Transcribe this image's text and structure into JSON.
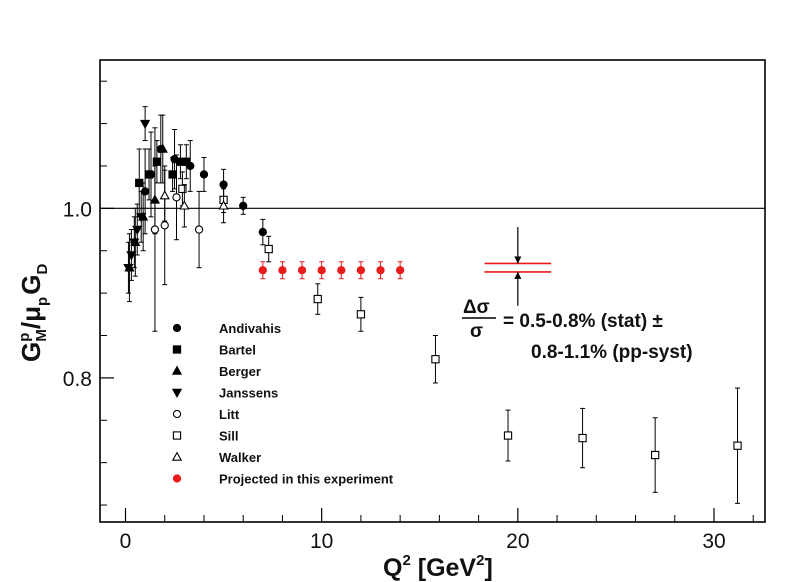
{
  "chart_data": {
    "type": "scatter",
    "xlabel": {
      "base": "Q",
      "sup": "2",
      "units_open": " [GeV",
      "units_sup": "2",
      "units_close": "]"
    },
    "ylabel": {
      "g": "G",
      "g_sup": "p",
      "g_sub": "M",
      "slash_mu": "/μ",
      "mu_sub": "p",
      "gd": "G",
      "gd_sub": "D"
    },
    "xlim": [
      -1.3,
      32.6
    ],
    "ylim": [
      0.63,
      1.175
    ],
    "xticks": [
      0,
      10,
      20,
      30
    ],
    "yticks": [
      0.8,
      1.0
    ],
    "ytick_labels": [
      "0.8",
      "1.0"
    ],
    "reference_line": 1.0,
    "series": [
      {
        "name": "Andivahis",
        "marker": "filled-circle",
        "color": "#000000",
        "points": [
          {
            "x": 1.0,
            "y": 1.02,
            "err": 0.05
          },
          {
            "x": 1.3,
            "y": 1.04,
            "err": 0.05
          },
          {
            "x": 1.8,
            "y": 1.07,
            "err": 0.04
          },
          {
            "x": 2.5,
            "y": 1.058,
            "err": 0.035
          },
          {
            "x": 3.3,
            "y": 1.05,
            "err": 0.03
          },
          {
            "x": 4.0,
            "y": 1.04,
            "err": 0.02
          },
          {
            "x": 5.0,
            "y": 1.028,
            "err": 0.018
          },
          {
            "x": 6.0,
            "y": 1.003,
            "err": 0.01
          },
          {
            "x": 7.0,
            "y": 0.972,
            "err": 0.015
          }
        ]
      },
      {
        "name": "Bartel",
        "marker": "filled-square",
        "color": "#000000",
        "points": [
          {
            "x": 0.7,
            "y": 1.03,
            "err": 0.04
          },
          {
            "x": 1.2,
            "y": 1.04,
            "err": 0.03
          },
          {
            "x": 1.6,
            "y": 1.055,
            "err": 0.025
          },
          {
            "x": 2.4,
            "y": 1.04,
            "err": 0.02
          },
          {
            "x": 2.8,
            "y": 1.055,
            "err": 0.02
          },
          {
            "x": 3.1,
            "y": 1.055,
            "err": 0.02
          }
        ]
      },
      {
        "name": "Berger",
        "marker": "filled-triangle-up",
        "color": "#000000",
        "points": [
          {
            "x": 0.2,
            "y": 0.93,
            "err": 0.04
          },
          {
            "x": 0.5,
            "y": 0.96,
            "err": 0.04
          },
          {
            "x": 0.9,
            "y": 0.99,
            "err": 0.04
          },
          {
            "x": 1.5,
            "y": 1.01,
            "err": 0.04
          },
          {
            "x": 1.9,
            "y": 1.07,
            "err": 0.04
          }
        ]
      },
      {
        "name": "Janssens",
        "marker": "filled-triangle-down",
        "color": "#000000",
        "points": [
          {
            "x": 0.15,
            "y": 0.93,
            "err": 0.03
          },
          {
            "x": 0.3,
            "y": 0.945,
            "err": 0.03
          },
          {
            "x": 0.45,
            "y": 0.96,
            "err": 0.03
          },
          {
            "x": 0.6,
            "y": 0.975,
            "err": 0.03
          },
          {
            "x": 0.8,
            "y": 0.99,
            "err": 0.03
          },
          {
            "x": 1.0,
            "y": 1.1,
            "err": 0.02
          }
        ]
      },
      {
        "name": "Litt",
        "marker": "open-circle",
        "color": "#000000",
        "points": [
          {
            "x": 1.5,
            "y": 0.975,
            "err": 0.12
          },
          {
            "x": 2.0,
            "y": 0.98,
            "err": 0.07
          },
          {
            "x": 2.6,
            "y": 1.013,
            "err": 0.05
          },
          {
            "x": 3.75,
            "y": 0.975,
            "err": 0.045
          }
        ]
      },
      {
        "name": "Sill",
        "marker": "open-square",
        "color": "#000000",
        "points": [
          {
            "x": 2.9,
            "y": 1.023,
            "err": 0.02
          },
          {
            "x": 5.0,
            "y": 1.01,
            "err": 0.015
          },
          {
            "x": 7.3,
            "y": 0.952,
            "err": 0.015
          },
          {
            "x": 9.8,
            "y": 0.893,
            "err": 0.018
          },
          {
            "x": 12.0,
            "y": 0.875,
            "err": 0.02
          },
          {
            "x": 15.8,
            "y": 0.822,
            "err": 0.028
          },
          {
            "x": 19.5,
            "y": 0.732,
            "err": 0.03
          },
          {
            "x": 23.3,
            "y": 0.729,
            "err": 0.035
          },
          {
            "x": 27.0,
            "y": 0.709,
            "err": 0.044
          },
          {
            "x": 31.2,
            "y": 0.72,
            "err": 0.068
          }
        ]
      },
      {
        "name": "Walker",
        "marker": "open-triangle-up",
        "color": "#000000",
        "points": [
          {
            "x": 2.0,
            "y": 1.015,
            "err": 0.03
          },
          {
            "x": 3.0,
            "y": 1.003,
            "err": 0.025
          },
          {
            "x": 5.0,
            "y": 1.003,
            "err": 0.02
          }
        ]
      },
      {
        "name": "Projected in this experiment",
        "marker": "filled-circle",
        "color": "#e81c1c",
        "points": [
          {
            "x": 7.0,
            "y": 0.927,
            "err": 0.01
          },
          {
            "x": 8.0,
            "y": 0.927,
            "err": 0.01
          },
          {
            "x": 9.0,
            "y": 0.927,
            "err": 0.01
          },
          {
            "x": 10.0,
            "y": 0.927,
            "err": 0.01
          },
          {
            "x": 11.0,
            "y": 0.927,
            "err": 0.01
          },
          {
            "x": 12.0,
            "y": 0.927,
            "err": 0.01
          },
          {
            "x": 13.0,
            "y": 0.927,
            "err": 0.01
          },
          {
            "x": 14.0,
            "y": 0.927,
            "err": 0.01
          }
        ]
      }
    ],
    "red_band": {
      "x": [
        18.3,
        21.7
      ],
      "y": [
        0.925,
        0.935
      ],
      "color": "#e81c1c"
    },
    "arrow": {
      "x": 20.0,
      "y_from": [
        0.978,
        0.885
      ],
      "y_to": [
        0.935,
        0.925
      ]
    },
    "annotation": {
      "num": "Δσ",
      "den": "σ",
      "line1": "= 0.5-0.8% (stat) ±",
      "line2": "0.8-1.1% (pp-syst)"
    },
    "legend_placement": "bottom-left"
  }
}
